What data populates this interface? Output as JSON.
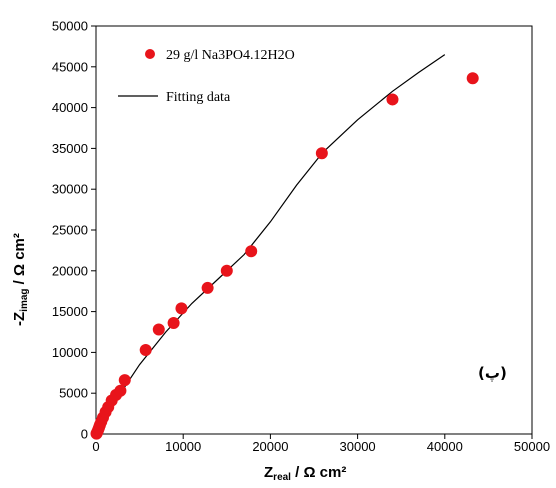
{
  "chart_data": {
    "type": "scatter",
    "xlabel_main": "Z",
    "xlabel_sub": "real",
    "xlabel_unit": " / Ω cm²",
    "ylabel_prefix": "-Z",
    "ylabel_sub": "imag",
    "ylabel_unit": " / Ω cm²",
    "xlim": [
      0,
      50000
    ],
    "ylim": [
      0,
      50000
    ],
    "xticks": [
      "0",
      "10000",
      "20000",
      "30000",
      "40000",
      "50000"
    ],
    "yticks": [
      "0",
      "5000",
      "10000",
      "15000",
      "20000",
      "25000",
      "30000",
      "35000",
      "40000",
      "45000",
      "50000"
    ],
    "panel_label": "(پ)",
    "legend_position": "top-left",
    "series": [
      {
        "name": "29 g/l Na3PO4.12H2O",
        "kind": "markers",
        "color": "#e8141b",
        "points": [
          [
            60,
            50
          ],
          [
            150,
            250
          ],
          [
            250,
            500
          ],
          [
            350,
            800
          ],
          [
            450,
            1100
          ],
          [
            600,
            1500
          ],
          [
            800,
            2000
          ],
          [
            1100,
            2700
          ],
          [
            1400,
            3300
          ],
          [
            1800,
            4100
          ],
          [
            2300,
            4800
          ],
          [
            2800,
            5300
          ],
          [
            3300,
            6600
          ],
          [
            5700,
            10300
          ],
          [
            7200,
            12800
          ],
          [
            8900,
            13600
          ],
          [
            9800,
            15400
          ],
          [
            12800,
            17900
          ],
          [
            15000,
            20000
          ],
          [
            17800,
            22400
          ],
          [
            25900,
            34400
          ],
          [
            34000,
            41000
          ],
          [
            43200,
            43600
          ]
        ]
      },
      {
        "name": "Fitting data",
        "kind": "line",
        "color": "#000000",
        "points": [
          [
            0,
            0
          ],
          [
            1000,
            2000
          ],
          [
            2500,
            4500
          ],
          [
            5000,
            8500
          ],
          [
            8000,
            12500
          ],
          [
            11000,
            16000
          ],
          [
            14000,
            19000
          ],
          [
            17000,
            22000
          ],
          [
            20000,
            26000
          ],
          [
            23000,
            30500
          ],
          [
            26000,
            34500
          ],
          [
            30000,
            38500
          ],
          [
            34000,
            42000
          ],
          [
            37000,
            44300
          ],
          [
            40000,
            46500
          ]
        ]
      }
    ]
  }
}
